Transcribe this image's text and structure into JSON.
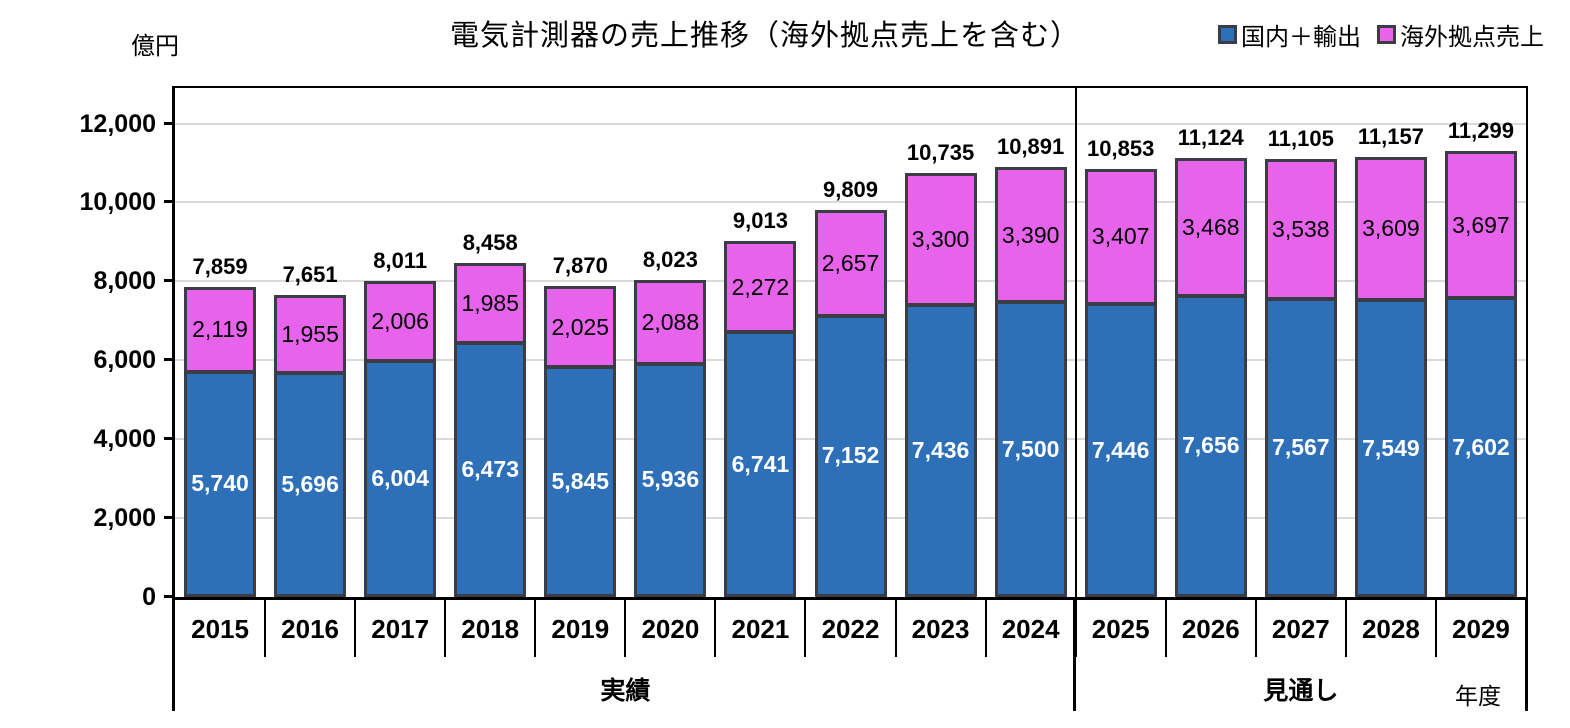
{
  "chart_data": {
    "type": "bar",
    "stacked": true,
    "title": "電気計測器の売上推移（海外拠点売上を含む）",
    "unit_label": "億円",
    "xlabel": "年度",
    "categories": [
      "2015",
      "2016",
      "2017",
      "2018",
      "2019",
      "2020",
      "2021",
      "2022",
      "2023",
      "2024",
      "2025",
      "2026",
      "2027",
      "2028",
      "2029"
    ],
    "series": [
      {
        "name": "国内＋輸出",
        "color": "#2e70b8",
        "values": [
          5740,
          5696,
          6004,
          6473,
          5845,
          5936,
          6741,
          7152,
          7436,
          7500,
          7446,
          7656,
          7567,
          7549,
          7602
        ]
      },
      {
        "name": "海外拠点売上",
        "color": "#e763ec",
        "values": [
          2119,
          1955,
          2006,
          1985,
          2025,
          2088,
          2272,
          2657,
          3300,
          3390,
          3407,
          3468,
          3538,
          3609,
          3697
        ]
      }
    ],
    "totals": [
      7859,
      7651,
      8011,
      8458,
      7870,
      8023,
      9013,
      9809,
      10735,
      10891,
      10853,
      11124,
      11105,
      11157,
      11299
    ],
    "sections": [
      {
        "label": "実績",
        "start_index": 0,
        "end_index": 9
      },
      {
        "label": "見通し",
        "start_index": 10,
        "end_index": 14
      }
    ],
    "y_tick_values": [
      0,
      2000,
      4000,
      6000,
      8000,
      10000,
      12000
    ],
    "ylim": [
      0,
      12900
    ],
    "grid": true,
    "legend_position": "top-right",
    "colors": {
      "bar_border": "#3a3e44",
      "gridline": "#dadada",
      "axis": "#000000"
    }
  }
}
